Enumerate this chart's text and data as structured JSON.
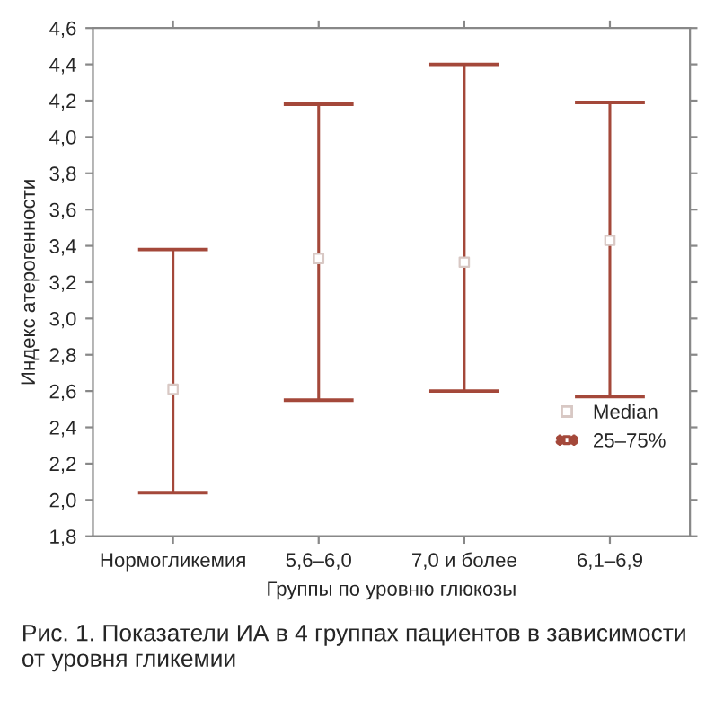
{
  "chart_data": {
    "type": "scatter",
    "xlabel": "Группы по уровню глюкозы",
    "ylabel": "Индекс атерогенности",
    "categories": [
      "Нормогликемия",
      "5,6–6,0",
      "7,0 и более",
      "6,1–6,9"
    ],
    "series": [
      {
        "name": "Median",
        "color": "#ffffff",
        "marker": "square",
        "values": [
          2.61,
          3.33,
          3.31,
          3.43
        ],
        "errors": [
          [
            2.04,
            3.38
          ],
          [
            2.55,
            4.18
          ],
          [
            2.6,
            4.4
          ],
          [
            2.57,
            4.19
          ]
        ]
      }
    ],
    "ylim": [
      1.8,
      4.6
    ],
    "yticks": [
      {
        "value": 1.8,
        "label": "1,8"
      },
      {
        "value": 2.0,
        "label": "2,0"
      },
      {
        "value": 2.2,
        "label": "2,2"
      },
      {
        "value": 2.4,
        "label": "2,4"
      },
      {
        "value": 2.6,
        "label": "2,6"
      },
      {
        "value": 2.8,
        "label": "2,8"
      },
      {
        "value": 3.0,
        "label": "3,0"
      },
      {
        "value": 3.2,
        "label": "3,2"
      },
      {
        "value": 3.4,
        "label": "3,4"
      },
      {
        "value": 3.6,
        "label": "3,6"
      },
      {
        "value": 3.8,
        "label": "3,8"
      },
      {
        "value": 4.0,
        "label": "4,0"
      },
      {
        "value": 4.2,
        "label": "4,2"
      },
      {
        "value": 4.4,
        "label": "4,4"
      },
      {
        "value": 4.6,
        "label": "4,6"
      }
    ],
    "grid": false,
    "legend": "bottom right",
    "annotations": [
      "25–75%",
      "Рис. 1. Показатели ИА в 4 группах пациентов в зависимости от уровня гликемии"
    ]
  }
}
